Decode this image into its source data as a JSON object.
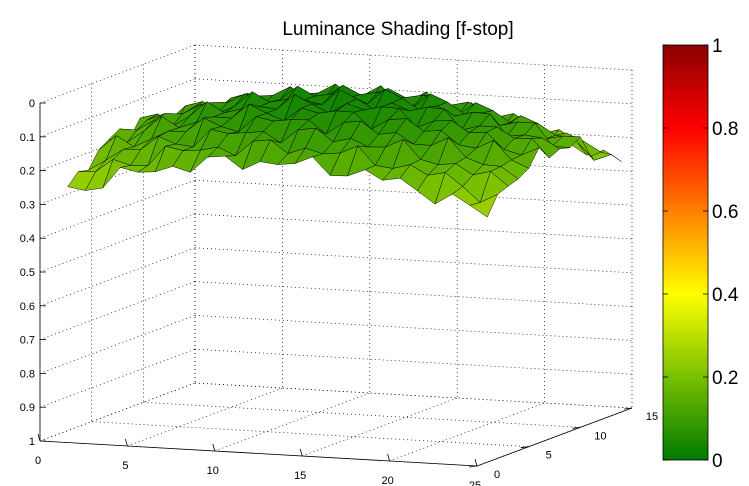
{
  "chart_data": {
    "type": "surface",
    "title": "Luminance Shading [f-stop]",
    "xlabel": "",
    "ylabel": "",
    "zlabel": "",
    "x_ticks": [
      "0",
      "5",
      "10",
      "15",
      "20",
      "25"
    ],
    "y_ticks": [
      "0",
      "5",
      "10",
      "15"
    ],
    "z_ticks": [
      "0",
      "0.1",
      "0.2",
      "0.3",
      "0.4",
      "0.5",
      "0.6",
      "0.7",
      "0.8",
      "0.9",
      "1"
    ],
    "xlim": [
      0,
      25
    ],
    "ylim": [
      0,
      15
    ],
    "zlim": [
      0,
      1
    ],
    "z_axis_reversed": true,
    "grid": true,
    "colormap": "green-yellow-red",
    "colorbar": {
      "ticks": [
        "0",
        "0.2",
        "0.4",
        "0.6",
        "0.8",
        "1"
      ],
      "range": [
        0,
        1
      ],
      "colors": [
        "#007a00",
        "#79c000",
        "#ffff00",
        "#ff7f00",
        "#ff0000",
        "#8b0000"
      ]
    },
    "surface": {
      "x_range": [
        1,
        25
      ],
      "y_range": [
        1,
        14
      ],
      "z_range_approx": [
        0.02,
        0.3
      ],
      "z_center_approx": 0.03,
      "z_corners_approx": 0.27
    }
  }
}
